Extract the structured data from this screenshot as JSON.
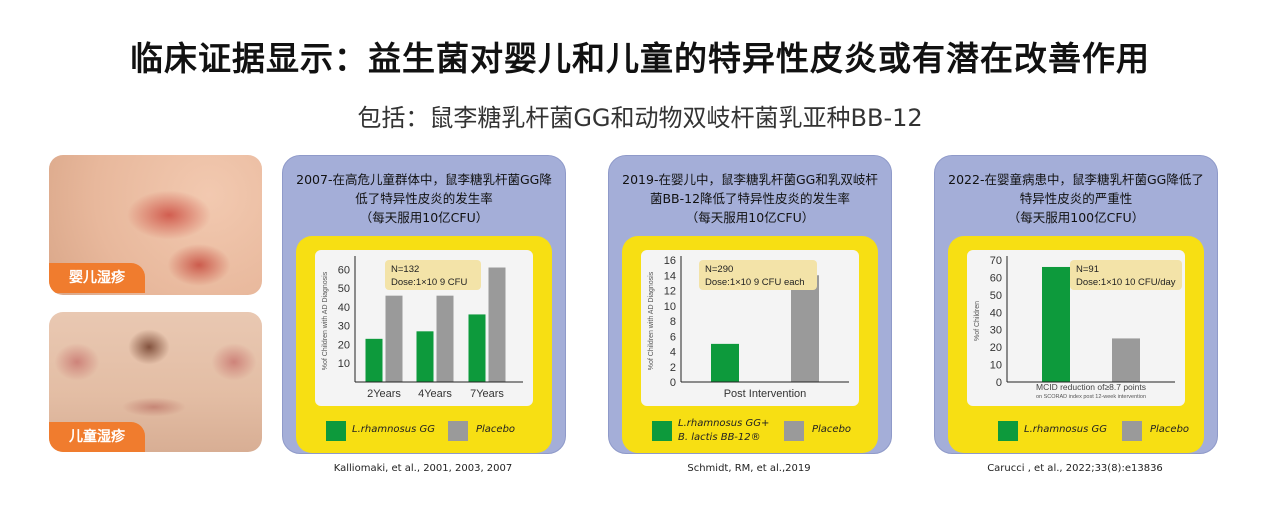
{
  "header": {
    "title": "临床证据显示：益生菌对婴儿和儿童的特异性皮炎或有潜在改善作用",
    "subtitle": "包括：鼠李糖乳杆菌GG和动物双岐杆菌乳亚种BB-12"
  },
  "photos": [
    {
      "label": "婴儿湿疹"
    },
    {
      "label": "儿童湿疹"
    }
  ],
  "colors": {
    "green": "#0d9a3c",
    "gray": "#9a9a9a",
    "yellow": "#f7df13",
    "card": "#a4aed8",
    "orange": "#f07c2e"
  },
  "cards": [
    {
      "head": [
        "2007-在高危儿童群体中，鼠李糖乳杆菌GG降",
        "低了特异性皮炎的发生率",
        "（每天服用10亿CFU）"
      ],
      "legend": {
        "a": "L.rhamnosus GG",
        "a2": "",
        "b": "Placebo"
      },
      "citation": "Kalliomaki, et al., 2001, 2003, 2007"
    },
    {
      "head": [
        "2019-在婴儿中，鼠李糖乳杆菌GG和乳双岐杆",
        "菌BB-12降低了特异性皮炎的发生率",
        "（每天服用10亿CFU）"
      ],
      "legend": {
        "a": "L.rhamnosus GG+",
        "a2": "B. lactis BB-12®",
        "b": "Placebo"
      },
      "citation": "Schmidt, RM, et al.,2019"
    },
    {
      "head": [
        "2022-在婴童病患中，鼠李糖乳杆菌GG降低了",
        "特异性皮炎的严重性",
        "（每天服用100亿CFU）"
      ],
      "legend": {
        "a": "L.rhamnosus GG",
        "a2": "",
        "b": "Placebo"
      },
      "citation": "Carucci , et al., 2022;33(8):e13836"
    }
  ],
  "chart_data": [
    {
      "type": "bar",
      "ylabel": "%of Children with AD Diagnosis",
      "ylim": [
        0,
        65
      ],
      "yticks": [
        10,
        20,
        30,
        40,
        50,
        60
      ],
      "categories": [
        "2Years",
        "4Years",
        "7Years"
      ],
      "series": [
        {
          "name": "L.rhamnosus GG",
          "values": [
            23,
            27,
            36
          ]
        },
        {
          "name": "Placebo",
          "values": [
            46,
            46,
            61
          ]
        }
      ],
      "note": [
        "N=132",
        "Dose:1×10 9 CFU"
      ]
    },
    {
      "type": "bar",
      "ylabel": "%of Children with AD Diagnosis",
      "ylim": [
        0,
        16
      ],
      "yticks": [
        0,
        2,
        4,
        6,
        8,
        10,
        12,
        14,
        16
      ],
      "categories": [
        "Post Intervention"
      ],
      "series": [
        {
          "name": "L.rhamnosus GG+ B. lactis BB-12®",
          "values": [
            5
          ]
        },
        {
          "name": "Placebo",
          "values": [
            14
          ]
        }
      ],
      "note": [
        "N=290",
        "Dose:1×10 9 CFU each"
      ]
    },
    {
      "type": "bar",
      "ylabel": "%of Children",
      "ylim": [
        0,
        70
      ],
      "yticks": [
        0,
        10,
        20,
        30,
        40,
        50,
        60,
        70
      ],
      "categories": [
        ""
      ],
      "series": [
        {
          "name": "L.rhamnosus GG",
          "values": [
            66
          ]
        },
        {
          "name": "Placebo",
          "values": [
            25
          ]
        }
      ],
      "note": [
        "N=91",
        "Dose:1×10 10 CFU/day"
      ],
      "annotation": [
        "MCID reduction of≥8.7 points",
        "on SCORAD index post 12-week intervention"
      ]
    }
  ]
}
